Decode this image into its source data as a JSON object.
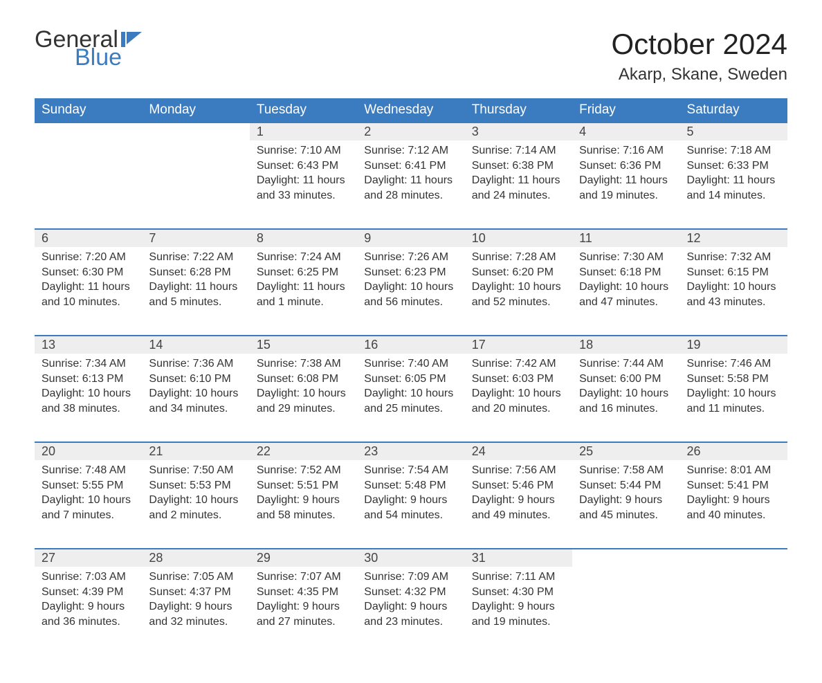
{
  "logo": {
    "text_general": "General",
    "text_blue": "Blue",
    "color_blue": "#3b7bbf",
    "color_dark": "#333333"
  },
  "header": {
    "month_title": "October 2024",
    "location": "Akarp, Skane, Sweden"
  },
  "styling": {
    "header_bg": "#3b7bbf",
    "header_fg": "#ffffff",
    "daynum_bg": "#eeeeee",
    "row_divider": "#3b7bbf",
    "body_bg": "#ffffff",
    "text_color": "#333333",
    "title_fontsize": 42,
    "location_fontsize": 24,
    "header_fontsize": 19,
    "cell_fontsize": 16
  },
  "weekdays": [
    "Sunday",
    "Monday",
    "Tuesday",
    "Wednesday",
    "Thursday",
    "Friday",
    "Saturday"
  ],
  "weeks": [
    [
      null,
      null,
      {
        "n": "1",
        "sunrise": "7:10 AM",
        "sunset": "6:43 PM",
        "day_h": "11",
        "day_m": "33"
      },
      {
        "n": "2",
        "sunrise": "7:12 AM",
        "sunset": "6:41 PM",
        "day_h": "11",
        "day_m": "28"
      },
      {
        "n": "3",
        "sunrise": "7:14 AM",
        "sunset": "6:38 PM",
        "day_h": "11",
        "day_m": "24"
      },
      {
        "n": "4",
        "sunrise": "7:16 AM",
        "sunset": "6:36 PM",
        "day_h": "11",
        "day_m": "19"
      },
      {
        "n": "5",
        "sunrise": "7:18 AM",
        "sunset": "6:33 PM",
        "day_h": "11",
        "day_m": "14"
      }
    ],
    [
      {
        "n": "6",
        "sunrise": "7:20 AM",
        "sunset": "6:30 PM",
        "day_h": "11",
        "day_m": "10"
      },
      {
        "n": "7",
        "sunrise": "7:22 AM",
        "sunset": "6:28 PM",
        "day_h": "11",
        "day_m": "5"
      },
      {
        "n": "8",
        "sunrise": "7:24 AM",
        "sunset": "6:25 PM",
        "day_h": "11",
        "day_m": "1",
        "minute_word": "minute"
      },
      {
        "n": "9",
        "sunrise": "7:26 AM",
        "sunset": "6:23 PM",
        "day_h": "10",
        "day_m": "56"
      },
      {
        "n": "10",
        "sunrise": "7:28 AM",
        "sunset": "6:20 PM",
        "day_h": "10",
        "day_m": "52"
      },
      {
        "n": "11",
        "sunrise": "7:30 AM",
        "sunset": "6:18 PM",
        "day_h": "10",
        "day_m": "47"
      },
      {
        "n": "12",
        "sunrise": "7:32 AM",
        "sunset": "6:15 PM",
        "day_h": "10",
        "day_m": "43"
      }
    ],
    [
      {
        "n": "13",
        "sunrise": "7:34 AM",
        "sunset": "6:13 PM",
        "day_h": "10",
        "day_m": "38"
      },
      {
        "n": "14",
        "sunrise": "7:36 AM",
        "sunset": "6:10 PM",
        "day_h": "10",
        "day_m": "34"
      },
      {
        "n": "15",
        "sunrise": "7:38 AM",
        "sunset": "6:08 PM",
        "day_h": "10",
        "day_m": "29"
      },
      {
        "n": "16",
        "sunrise": "7:40 AM",
        "sunset": "6:05 PM",
        "day_h": "10",
        "day_m": "25"
      },
      {
        "n": "17",
        "sunrise": "7:42 AM",
        "sunset": "6:03 PM",
        "day_h": "10",
        "day_m": "20"
      },
      {
        "n": "18",
        "sunrise": "7:44 AM",
        "sunset": "6:00 PM",
        "day_h": "10",
        "day_m": "16"
      },
      {
        "n": "19",
        "sunrise": "7:46 AM",
        "sunset": "5:58 PM",
        "day_h": "10",
        "day_m": "11"
      }
    ],
    [
      {
        "n": "20",
        "sunrise": "7:48 AM",
        "sunset": "5:55 PM",
        "day_h": "10",
        "day_m": "7"
      },
      {
        "n": "21",
        "sunrise": "7:50 AM",
        "sunset": "5:53 PM",
        "day_h": "10",
        "day_m": "2"
      },
      {
        "n": "22",
        "sunrise": "7:52 AM",
        "sunset": "5:51 PM",
        "day_h": "9",
        "day_m": "58"
      },
      {
        "n": "23",
        "sunrise": "7:54 AM",
        "sunset": "5:48 PM",
        "day_h": "9",
        "day_m": "54"
      },
      {
        "n": "24",
        "sunrise": "7:56 AM",
        "sunset": "5:46 PM",
        "day_h": "9",
        "day_m": "49"
      },
      {
        "n": "25",
        "sunrise": "7:58 AM",
        "sunset": "5:44 PM",
        "day_h": "9",
        "day_m": "45"
      },
      {
        "n": "26",
        "sunrise": "8:01 AM",
        "sunset": "5:41 PM",
        "day_h": "9",
        "day_m": "40"
      }
    ],
    [
      {
        "n": "27",
        "sunrise": "7:03 AM",
        "sunset": "4:39 PM",
        "day_h": "9",
        "day_m": "36"
      },
      {
        "n": "28",
        "sunrise": "7:05 AM",
        "sunset": "4:37 PM",
        "day_h": "9",
        "day_m": "32"
      },
      {
        "n": "29",
        "sunrise": "7:07 AM",
        "sunset": "4:35 PM",
        "day_h": "9",
        "day_m": "27"
      },
      {
        "n": "30",
        "sunrise": "7:09 AM",
        "sunset": "4:32 PM",
        "day_h": "9",
        "day_m": "23"
      },
      {
        "n": "31",
        "sunrise": "7:11 AM",
        "sunset": "4:30 PM",
        "day_h": "9",
        "day_m": "19"
      },
      null,
      null
    ]
  ],
  "labels": {
    "sunrise": "Sunrise: ",
    "sunset": "Sunset: ",
    "daylight": "Daylight: ",
    "hours": " hours",
    "and": "and ",
    "minutes_default": "minutes"
  }
}
